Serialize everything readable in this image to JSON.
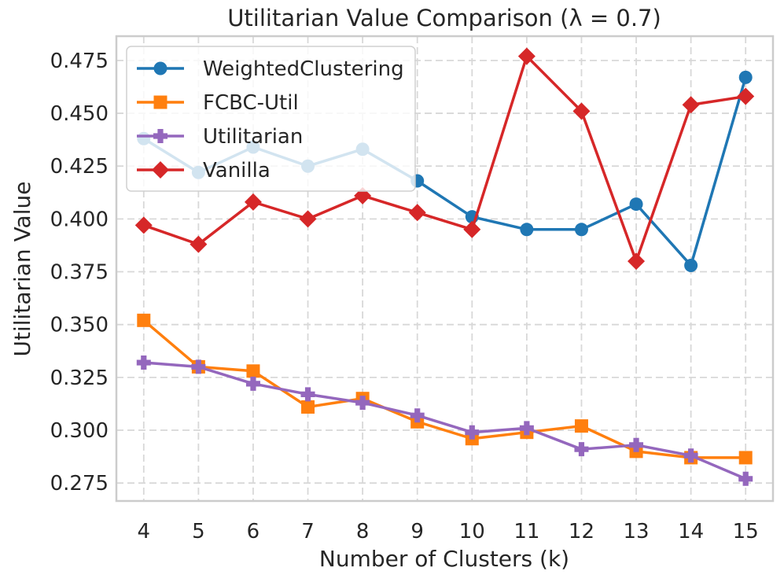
{
  "chart_data": {
    "type": "line",
    "title": "Utilitarian Value Comparison (λ = 0.7)",
    "xlabel": "Number of Clusters (k)",
    "ylabel": "Utilitarian Value",
    "x": [
      4,
      5,
      6,
      7,
      8,
      9,
      10,
      11,
      12,
      13,
      14,
      15
    ],
    "xlim": [
      3.5,
      15.5
    ],
    "ylim": [
      0.2665,
      0.4865
    ],
    "yticks": [
      0.275,
      0.3,
      0.325,
      0.35,
      0.375,
      0.4,
      0.425,
      0.45,
      0.475
    ],
    "ytick_labels": [
      "0.275",
      "0.300",
      "0.325",
      "0.350",
      "0.375",
      "0.400",
      "0.425",
      "0.450",
      "0.475"
    ],
    "xtick_labels": [
      "4",
      "5",
      "6",
      "7",
      "8",
      "9",
      "10",
      "11",
      "12",
      "13",
      "14",
      "15"
    ],
    "grid": true,
    "legend_position": "top-left",
    "series": [
      {
        "name": "WeightedClustering",
        "color": "#1f77b4",
        "marker": "circle",
        "values": [
          0.438,
          0.422,
          0.434,
          0.425,
          0.433,
          0.418,
          0.401,
          0.395,
          0.395,
          0.407,
          0.378,
          0.467
        ]
      },
      {
        "name": "FCBC-Util",
        "color": "#ff7f0e",
        "marker": "square",
        "values": [
          0.352,
          0.33,
          0.328,
          0.311,
          0.315,
          0.304,
          0.296,
          0.299,
          0.302,
          0.29,
          0.287,
          0.287
        ]
      },
      {
        "name": "Utilitarian",
        "color": "#9467bd",
        "marker": "plus",
        "values": [
          0.332,
          0.33,
          0.322,
          0.317,
          0.313,
          0.307,
          0.299,
          0.301,
          0.291,
          0.293,
          0.288,
          0.277
        ]
      },
      {
        "name": "Vanilla",
        "color": "#d62728",
        "marker": "diamond",
        "values": [
          0.397,
          0.388,
          0.408,
          0.4,
          0.411,
          0.403,
          0.395,
          0.477,
          0.451,
          0.38,
          0.454,
          0.458
        ]
      }
    ]
  }
}
